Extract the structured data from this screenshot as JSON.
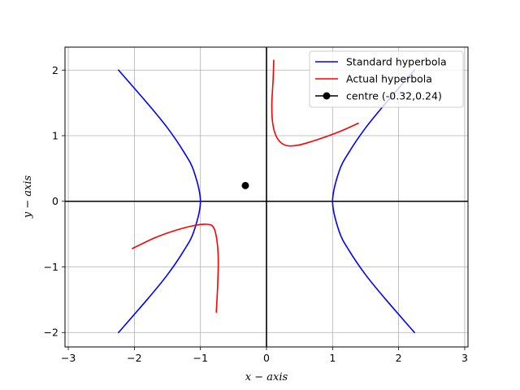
{
  "chart_data": {
    "type": "line",
    "title": "",
    "xlabel": "x − axis",
    "ylabel": "y − axis",
    "xlim": [
      -3.05,
      3.05
    ],
    "ylim": [
      -2.22,
      2.35
    ],
    "xticks": [
      -3,
      -2,
      -1,
      0,
      1,
      2,
      3
    ],
    "yticks": [
      -2,
      -1,
      0,
      1,
      2
    ],
    "xtick_labels": [
      "−3",
      "−2",
      "−1",
      "0",
      "1",
      "2",
      "3"
    ],
    "ytick_labels": [
      "−2",
      "−1",
      "0",
      "1",
      "2"
    ],
    "grid": true,
    "legend_position": "top-right",
    "colors": {
      "standard": "#0000ff",
      "actual": "#ff0000",
      "centre": "#000000",
      "axes": "#000000",
      "grid": "#b0b0b0"
    },
    "series": [
      {
        "name": "Standard hyperbola",
        "color": "#0000ff",
        "branches": [
          {
            "x": [
              -2.24,
              -1.8,
              -1.5,
              -1.25,
              -1.1,
              -1.0,
              -1.1,
              -1.25,
              -1.5,
              -1.8,
              -2.24
            ],
            "y": [
              2.0,
              1.49,
              1.12,
              0.75,
              0.46,
              0.0,
              -0.46,
              -0.75,
              -1.12,
              -1.49,
              -2.0
            ]
          },
          {
            "x": [
              2.24,
              1.8,
              1.5,
              1.25,
              1.1,
              1.0,
              1.1,
              1.25,
              1.5,
              1.8,
              2.24
            ],
            "y": [
              2.0,
              1.49,
              1.12,
              0.75,
              0.46,
              0.0,
              -0.46,
              -0.75,
              -1.12,
              -1.49,
              -2.0
            ]
          }
        ]
      },
      {
        "name": "Actual hyperbola",
        "color": "#ff0000",
        "branches": [
          {
            "x": [
              0.11,
              0.1,
              0.08,
              0.1,
              0.17,
              0.3,
              0.5,
              0.8,
              1.1,
              1.39
            ],
            "y": [
              2.15,
              1.85,
              1.45,
              1.15,
              0.95,
              0.85,
              0.86,
              0.95,
              1.06,
              1.19
            ]
          },
          {
            "x": [
              -2.03,
              -1.7,
              -1.4,
              -1.1,
              -0.9,
              -0.8,
              -0.75,
              -0.73,
              -0.74,
              -0.76
            ],
            "y": [
              -0.72,
              -0.56,
              -0.45,
              -0.37,
              -0.35,
              -0.4,
              -0.6,
              -0.9,
              -1.3,
              -1.69
            ]
          }
        ]
      },
      {
        "name": "centre (-0.32,0.24)",
        "color": "#000000",
        "marker": "circle",
        "x": [
          -0.32
        ],
        "y": [
          0.24
        ]
      }
    ]
  }
}
